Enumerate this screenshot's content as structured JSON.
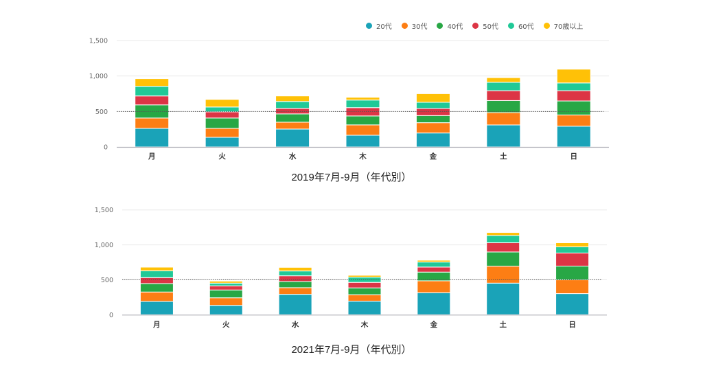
{
  "legend": [
    {
      "label": "20代",
      "color": "#1aa3b8"
    },
    {
      "label": "30代",
      "color": "#fd7e14"
    },
    {
      "label": "40代",
      "color": "#28a745"
    },
    {
      "label": "50代",
      "color": "#dc3545"
    },
    {
      "label": "60代",
      "color": "#20c997"
    },
    {
      "label": "70歳以上",
      "color": "#ffc107"
    }
  ],
  "chart_data": [
    {
      "type": "bar",
      "stacked": true,
      "title": "2019年7月-9月（年代別）",
      "xlabel": "",
      "ylabel": "",
      "categories": [
        "月",
        "火",
        "水",
        "木",
        "金",
        "土",
        "日"
      ],
      "ylim": [
        0,
        1500
      ],
      "yticks": [
        0,
        500,
        1000,
        1500
      ],
      "ytick_labels": [
        "0",
        "500",
        "1,000",
        "1,500"
      ],
      "reference_line": 500,
      "grid": true,
      "legend_position": "top-right",
      "series": [
        {
          "name": "20代",
          "values": [
            262,
            136,
            252,
            165,
            197,
            310,
            293
          ]
        },
        {
          "name": "30代",
          "values": [
            146,
            126,
            97,
            146,
            145,
            174,
            158
          ]
        },
        {
          "name": "40代",
          "values": [
            185,
            146,
            117,
            126,
            100,
            170,
            197
          ]
        },
        {
          "name": "50代",
          "values": [
            126,
            87,
            78,
            117,
            100,
            139,
            145
          ]
        },
        {
          "name": "60代",
          "values": [
            136,
            68,
            97,
            107,
            87,
            119,
            109
          ]
        },
        {
          "name": "70歳以上",
          "values": [
            107,
            107,
            78,
            39,
            122,
            65,
            194
          ]
        }
      ]
    },
    {
      "type": "bar",
      "stacked": true,
      "title": "2021年7月-9月（年代別）",
      "xlabel": "",
      "ylabel": "",
      "categories": [
        "月",
        "火",
        "水",
        "木",
        "金",
        "土",
        "日"
      ],
      "ylim": [
        0,
        1500
      ],
      "yticks": [
        0,
        500,
        1000,
        1500
      ],
      "ytick_labels": [
        "0",
        "500",
        "1,000",
        "1,500"
      ],
      "reference_line": 500,
      "grid": true,
      "legend_position": "top-right",
      "series": [
        {
          "name": "20代",
          "values": [
            190,
            134,
            292,
            194,
            315,
            452,
            302
          ]
        },
        {
          "name": "30代",
          "values": [
            135,
            108,
            95,
            92,
            170,
            243,
            197
          ]
        },
        {
          "name": "40代",
          "values": [
            121,
            112,
            88,
            98,
            125,
            203,
            197
          ]
        },
        {
          "name": "50代",
          "values": [
            85,
            59,
            82,
            79,
            72,
            132,
            187
          ]
        },
        {
          "name": "60代",
          "values": [
            98,
            39,
            69,
            75,
            72,
            104,
            88
          ]
        },
        {
          "name": "70歳以上",
          "values": [
            52,
            29,
            52,
            26,
            26,
            43,
            59
          ]
        }
      ]
    }
  ]
}
